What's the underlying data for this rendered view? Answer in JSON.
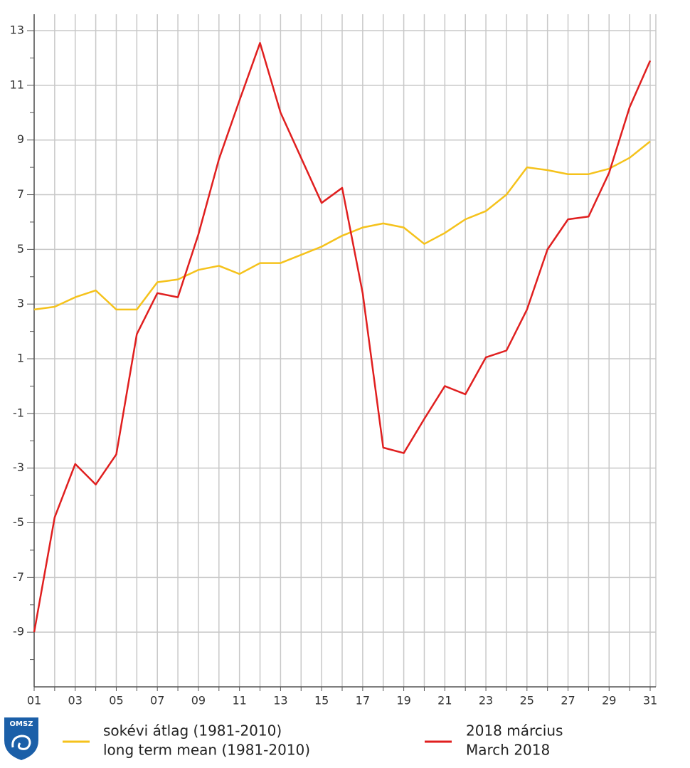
{
  "chart_data": {
    "type": "line",
    "categories": [
      "01",
      null,
      "03",
      null,
      "05",
      null,
      "07",
      null,
      "09",
      null,
      "11",
      null,
      "13",
      null,
      "15",
      null,
      "17",
      null,
      "19",
      null,
      "21",
      null,
      "23",
      null,
      "25",
      null,
      "27",
      null,
      "29",
      null,
      "31"
    ],
    "series": [
      {
        "name": "sokévi átlag (1981-2010)",
        "name_en": "long term mean (1981-2010)",
        "color": "#f5c21b",
        "values": [
          2.8,
          2.9,
          3.25,
          3.5,
          2.8,
          2.8,
          3.8,
          3.9,
          4.25,
          4.4,
          4.1,
          4.5,
          4.5,
          4.8,
          5.1,
          5.5,
          5.8,
          5.95,
          5.8,
          5.2,
          5.6,
          6.1,
          6.4,
          7.0,
          8.0,
          7.9,
          7.75,
          7.75,
          7.95,
          8.35,
          8.95
        ]
      },
      {
        "name": "2018 március",
        "name_en": "March 2018",
        "color": "#e01f1f",
        "values": [
          -9.0,
          -4.8,
          -2.85,
          -3.6,
          -2.5,
          1.9,
          3.4,
          3.25,
          5.55,
          8.3,
          10.45,
          12.55,
          10.0,
          8.35,
          6.7,
          7.25,
          3.4,
          -2.25,
          -2.45,
          -1.2,
          0.0,
          -0.3,
          1.05,
          1.3,
          2.8,
          5.0,
          6.1,
          6.2,
          7.8,
          10.2,
          11.9
        ]
      }
    ],
    "ylim": [
      -11,
      13.6
    ],
    "yticks": [
      -9,
      -7,
      -5,
      -3,
      -1,
      1,
      3,
      5,
      7,
      9,
      11,
      13
    ],
    "grid": true,
    "logo": "OMSZ"
  }
}
